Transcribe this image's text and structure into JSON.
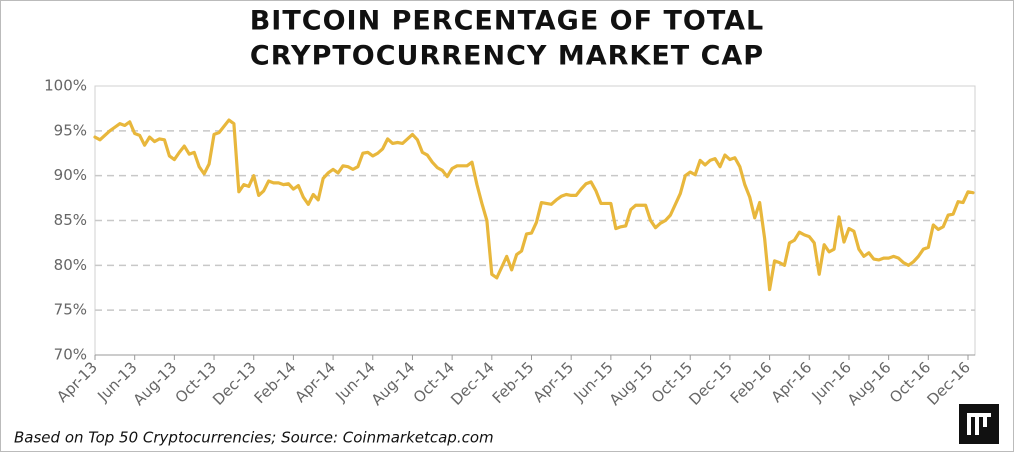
{
  "chart_data": {
    "type": "line",
    "title": "BITCOIN PERCENTAGE OF TOTAL",
    "subtitle": "CRYPTOCURRENCY MARKET CAP",
    "footnote": "Based on Top 50 Cryptocurrencies; Source: Coinmarketcap.com",
    "categories": [
      "Apr-13",
      null,
      null,
      null,
      null,
      null,
      null,
      null,
      "Jun-13",
      null,
      null,
      null,
      null,
      null,
      null,
      null,
      "Aug-13",
      null,
      null,
      null,
      null,
      null,
      null,
      null,
      "Oct-13",
      null,
      null,
      null,
      null,
      null,
      null,
      null,
      "Dec-13",
      null,
      null,
      null,
      null,
      null,
      null,
      null,
      "Feb-14",
      null,
      null,
      null,
      null,
      null,
      null,
      null,
      "Apr-14",
      null,
      null,
      null,
      null,
      null,
      null,
      null,
      "Jun-14",
      null,
      null,
      null,
      null,
      null,
      null,
      null,
      "Aug-14",
      null,
      null,
      null,
      null,
      null,
      null,
      null,
      "Oct-14",
      null,
      null,
      null,
      null,
      null,
      null,
      null,
      "Dec-14",
      null,
      null,
      null,
      null,
      null,
      null,
      null,
      "Feb-15",
      null,
      null,
      null,
      null,
      null,
      null,
      null,
      "Apr-15",
      null,
      null,
      null,
      null,
      null,
      null,
      null,
      "Jun-15",
      null,
      null,
      null,
      null,
      null,
      null,
      null,
      "Aug-15",
      null,
      null,
      null,
      null,
      null,
      null,
      null,
      "Oct-15",
      null,
      null,
      null,
      null,
      null,
      null,
      null,
      "Dec-15",
      null,
      null,
      null,
      null,
      null,
      null,
      null,
      "Feb-16",
      null,
      null,
      null,
      null,
      null,
      null,
      null,
      "Apr-16",
      null,
      null,
      null,
      null,
      null,
      null,
      null,
      "Jun-16",
      null,
      null,
      null,
      null,
      null,
      null,
      null,
      "Aug-16",
      null,
      null,
      null,
      null,
      null,
      null,
      null,
      "Oct-16",
      null,
      null,
      null,
      null,
      null,
      null,
      null,
      "Dec-16",
      null
    ],
    "series": [
      {
        "color": "#e8b73c",
        "values": [
          94.3,
          94.0,
          94.5,
          95.0,
          95.4,
          95.8,
          95.6,
          96.0,
          94.7,
          94.5,
          93.4,
          94.3,
          93.8,
          94.1,
          94.0,
          92.2,
          91.8,
          92.6,
          93.3,
          92.4,
          92.6,
          91.0,
          90.2,
          91.3,
          94.6,
          94.8,
          95.5,
          96.2,
          95.8,
          88.2,
          89.0,
          88.8,
          90.0,
          87.8,
          88.3,
          89.4,
          89.2,
          89.2,
          89.0,
          89.1,
          88.5,
          88.9,
          87.6,
          86.8,
          87.9,
          87.3,
          89.7,
          90.3,
          90.7,
          90.3,
          91.1,
          91.0,
          90.7,
          91.0,
          92.5,
          92.6,
          92.2,
          92.5,
          93.0,
          94.1,
          93.6,
          93.7,
          93.6,
          94.1,
          94.6,
          94.0,
          92.6,
          92.3,
          91.5,
          90.9,
          90.6,
          89.9,
          90.8,
          91.1,
          91.1,
          91.1,
          91.5,
          89.0,
          86.9,
          85.0,
          79.0,
          78.6,
          79.8,
          81.0,
          79.5,
          81.2,
          81.6,
          83.5,
          83.6,
          84.8,
          87.0,
          86.9,
          86.8,
          87.3,
          87.7,
          87.9,
          87.8,
          87.8,
          88.5,
          89.1,
          89.3,
          88.3,
          86.9,
          86.9,
          86.9,
          84.1,
          84.3,
          84.4,
          86.2,
          86.7,
          86.7,
          86.7,
          85.0,
          84.2,
          84.7,
          85.0,
          85.6,
          86.8,
          88.0,
          90.0,
          90.4,
          90.1,
          91.7,
          91.2,
          91.7,
          91.9,
          91.0,
          92.3,
          91.8,
          92.0,
          91.0,
          89.0,
          87.6,
          85.3,
          87.0,
          83.0,
          77.3,
          80.5,
          80.3,
          80.0,
          82.5,
          82.8,
          83.7,
          83.4,
          83.2,
          82.5,
          79.0,
          82.3,
          81.5,
          81.8,
          85.4,
          82.6,
          84.1,
          83.8,
          81.8,
          81.0,
          81.4,
          80.7,
          80.6,
          80.8,
          80.8,
          81.0,
          80.8,
          80.3,
          80.0,
          80.4,
          81.0,
          81.8,
          82.0,
          84.5,
          84.0,
          84.3,
          85.6,
          85.7,
          87.1,
          87.0,
          88.2,
          88.1
        ]
      }
    ],
    "ylim": [
      70,
      100
    ],
    "yticks": [
      {
        "value": 70,
        "label": "70%"
      },
      {
        "value": 75,
        "label": "75%"
      },
      {
        "value": 80,
        "label": "80%"
      },
      {
        "value": 85,
        "label": "85%"
      },
      {
        "value": 90,
        "label": "90%"
      },
      {
        "value": 95,
        "label": "95%"
      },
      {
        "value": 100,
        "label": "100%"
      }
    ],
    "grid": true
  }
}
